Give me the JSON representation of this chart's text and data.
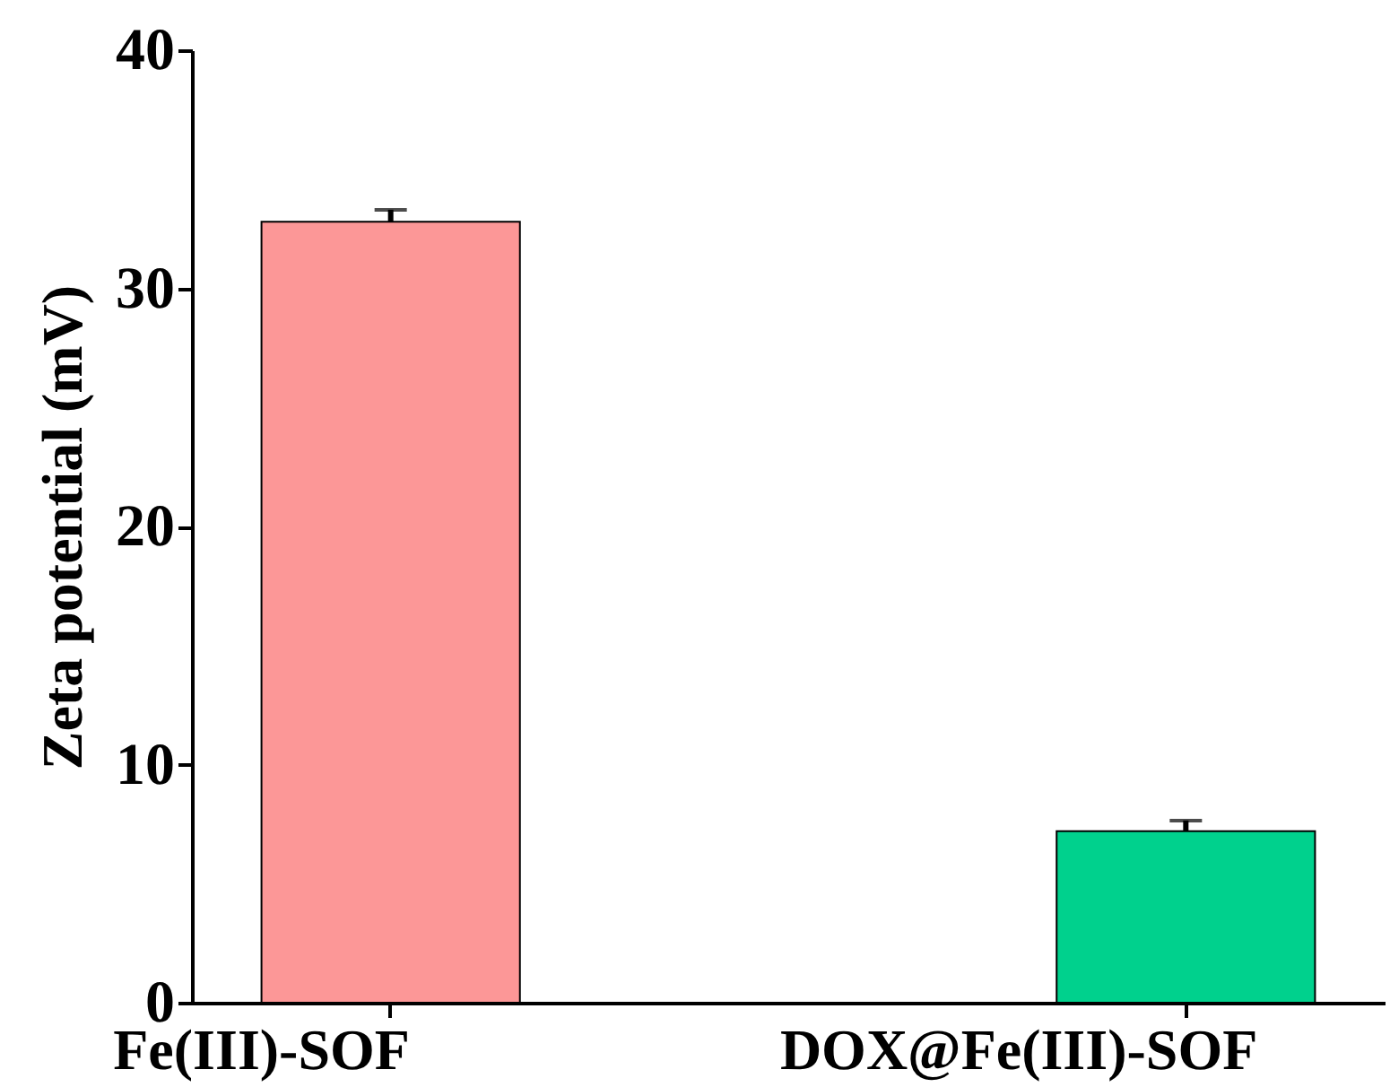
{
  "chart_data": {
    "type": "bar",
    "ylabel": "Zeta potential (mV)",
    "categories": [
      "Fe(III)-SOF",
      "DOX@Fe(III)-SOF"
    ],
    "values": [
      32.8,
      7.2
    ],
    "errors": [
      0.5,
      0.45
    ],
    "colors": [
      "#fc9797",
      "#00d18d"
    ],
    "ylim": [
      0,
      40
    ],
    "yticks": [
      0,
      10,
      20,
      30,
      40
    ],
    "grid": false,
    "legend": false
  }
}
